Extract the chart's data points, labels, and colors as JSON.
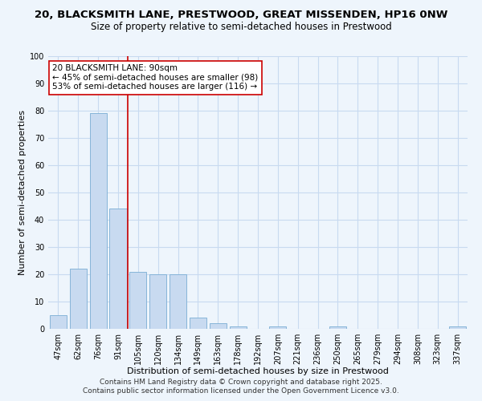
{
  "title1": "20, BLACKSMITH LANE, PRESTWOOD, GREAT MISSENDEN, HP16 0NW",
  "title2": "Size of property relative to semi-detached houses in Prestwood",
  "xlabel": "Distribution of semi-detached houses by size in Prestwood",
  "ylabel": "Number of semi-detached properties",
  "bar_labels": [
    "47sqm",
    "62sqm",
    "76sqm",
    "91sqm",
    "105sqm",
    "120sqm",
    "134sqm",
    "149sqm",
    "163sqm",
    "178sqm",
    "192sqm",
    "207sqm",
    "221sqm",
    "236sqm",
    "250sqm",
    "265sqm",
    "279sqm",
    "294sqm",
    "308sqm",
    "323sqm",
    "337sqm"
  ],
  "bar_values": [
    5,
    22,
    79,
    44,
    21,
    20,
    20,
    4,
    2,
    1,
    0,
    1,
    0,
    0,
    1,
    0,
    0,
    0,
    0,
    0,
    1
  ],
  "bar_color": "#c8daf0",
  "bar_edge_color": "#7aadd4",
  "grid_color": "#c8daf0",
  "background_color": "#eef5fc",
  "vline_x_idx": 3,
  "vline_color": "#cc0000",
  "annotation_text": "20 BLACKSMITH LANE: 90sqm\n← 45% of semi-detached houses are smaller (98)\n53% of semi-detached houses are larger (116) →",
  "annotation_box_color": "white",
  "annotation_box_edge": "#cc0000",
  "ylim": [
    0,
    100
  ],
  "yticks": [
    0,
    10,
    20,
    30,
    40,
    50,
    60,
    70,
    80,
    90,
    100
  ],
  "footer1": "Contains HM Land Registry data © Crown copyright and database right 2025.",
  "footer2": "Contains public sector information licensed under the Open Government Licence v3.0.",
  "title_fontsize": 9.5,
  "subtitle_fontsize": 8.5,
  "axis_label_fontsize": 8,
  "tick_fontsize": 7,
  "annotation_fontsize": 7.5,
  "footer_fontsize": 6.5
}
